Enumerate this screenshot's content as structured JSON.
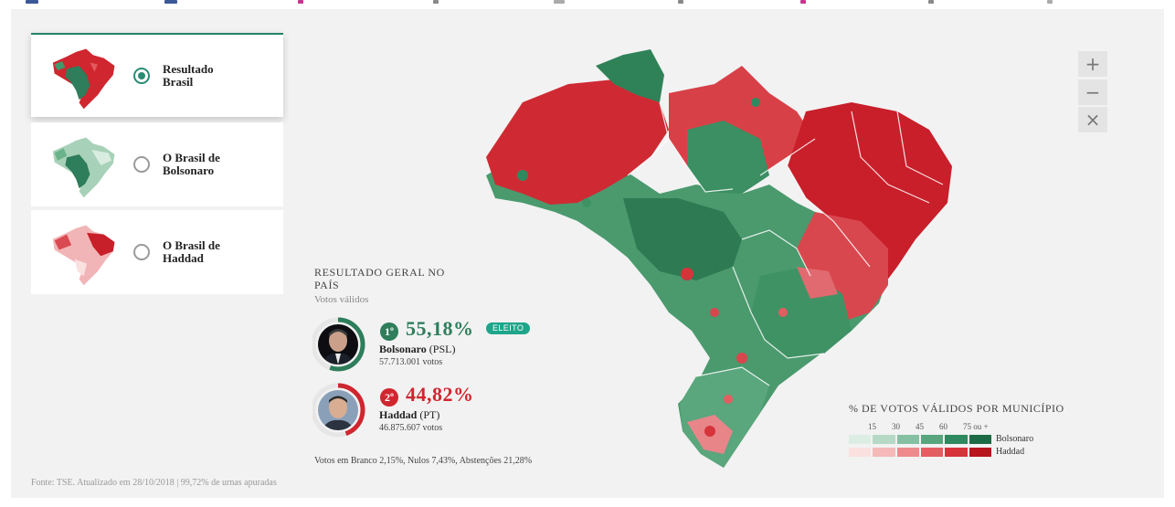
{
  "map_options": [
    {
      "label": "Resultado Brasil",
      "selected": true
    },
    {
      "label": "O Brasil de Bolsonaro",
      "selected": false
    },
    {
      "label": "O Brasil de Haddad",
      "selected": false
    }
  ],
  "zoom": {
    "in_label": "+",
    "out_label": "−",
    "reset_label": "×"
  },
  "result": {
    "title": "RESULTADO GERAL NO PAÍS",
    "subtitle": "Votos válidos",
    "candidates": [
      {
        "rank": "1º",
        "pct": "55,18%",
        "name": "Bolsonaro",
        "party": "(PSL)",
        "votes": "57.713.001 votos",
        "badge": "ELEITO",
        "color": "#2e7d5b",
        "share": 0.5518
      },
      {
        "rank": "2º",
        "pct": "44,82%",
        "name": "Haddad",
        "party": "(PT)",
        "votes": "46.875.607 votos",
        "color": "#d0262f",
        "share": 0.4482
      }
    ],
    "note": "Votos em Branco 2,15%, Nulos 7,43%, Abstenções 21,28%"
  },
  "source": "Fonte: TSE. Atualizado em 28/10/2018 | 99,72% de urnas apuradas",
  "legend": {
    "title": "% DE VOTOS VÁLIDOS POR MUNICÍPIO",
    "ticks": [
      "15",
      "30",
      "45",
      "60",
      "75 ou +"
    ],
    "rows": [
      {
        "name": "Bolsonaro",
        "colors": [
          "#dceee4",
          "#b6d9c6",
          "#86c0a2",
          "#58a57e",
          "#2e8a5e",
          "#1d6b46"
        ]
      },
      {
        "name": "Haddad",
        "colors": [
          "#fbe0e0",
          "#f5b9b9",
          "#ee8a8c",
          "#e45d61",
          "#d6343b",
          "#b8151f"
        ]
      }
    ]
  }
}
